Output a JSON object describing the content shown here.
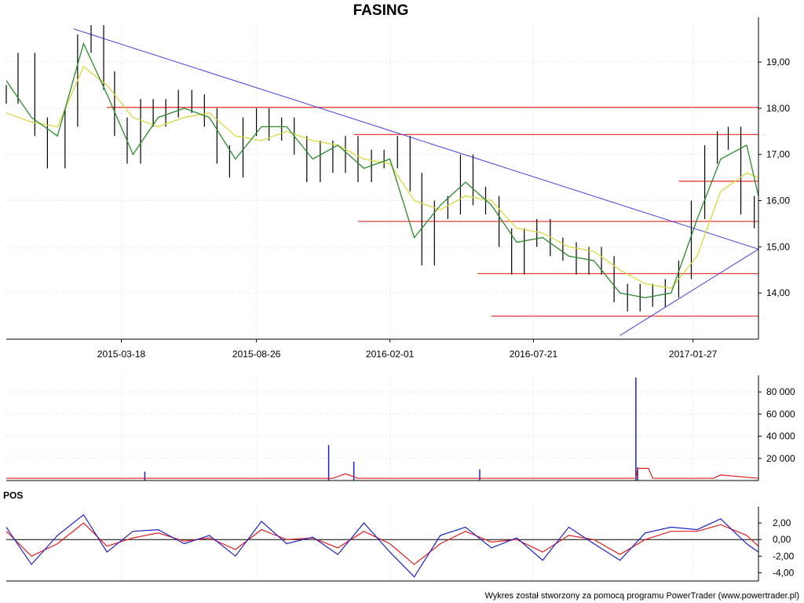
{
  "chart_data": [
    {
      "panel": "price",
      "type": "candlestick",
      "title": "FASING",
      "x_range": [
        "2014-11-01",
        "2017-04-15"
      ],
      "x_tick_labels": [
        "2015-03-18",
        "2015-08-26",
        "2016-02-01",
        "2016-07-21",
        "2017-01-27"
      ],
      "y_tick_labels": [
        "14,00",
        "15,00",
        "16,00",
        "17,00",
        "18,00",
        "19,00"
      ],
      "ylim": [
        13.0,
        19.8
      ],
      "grid": true,
      "series": [
        {
          "name": "close",
          "color": "#000000",
          "x": [
            "2014-11-01",
            "2014-11-15",
            "2014-12-05",
            "2014-12-20",
            "2015-01-10",
            "2015-01-25",
            "2015-02-10",
            "2015-02-25",
            "2015-03-10",
            "2015-03-25",
            "2015-04-10",
            "2015-04-25",
            "2015-05-10",
            "2015-05-25",
            "2015-06-10",
            "2015-06-25",
            "2015-07-10",
            "2015-07-25",
            "2015-08-10",
            "2015-08-26",
            "2015-09-10",
            "2015-09-25",
            "2015-10-10",
            "2015-10-25",
            "2015-11-10",
            "2015-11-25",
            "2015-12-10",
            "2015-12-25",
            "2016-01-10",
            "2016-01-25",
            "2016-02-10",
            "2016-02-25",
            "2016-03-10",
            "2016-03-25",
            "2016-04-10",
            "2016-04-25",
            "2016-05-10",
            "2016-05-25",
            "2016-06-10",
            "2016-06-25",
            "2016-07-10",
            "2016-07-25",
            "2016-08-10",
            "2016-08-25",
            "2016-09-10",
            "2016-09-25",
            "2016-10-10",
            "2016-10-25",
            "2016-11-10",
            "2016-11-25",
            "2016-12-10",
            "2016-12-25",
            "2017-01-10",
            "2017-01-25",
            "2017-02-10",
            "2017-02-25",
            "2017-03-10",
            "2017-03-25",
            "2017-04-10"
          ],
          "values": [
            18.3,
            19.0,
            17.6,
            16.9,
            17.8,
            19.4,
            19.6,
            18.6,
            17.6,
            17.0,
            18.0,
            17.8,
            18.0,
            18.2,
            18.1,
            17.8,
            17.0,
            16.7,
            17.6,
            17.8,
            17.5,
            17.6,
            17.2,
            16.6,
            17.1,
            16.8,
            17.2,
            16.6,
            16.9,
            16.9,
            17.2,
            16.4,
            14.8,
            15.8,
            15.9,
            16.8,
            16.1,
            15.9,
            15.2,
            14.6,
            15.2,
            15.4,
            15.0,
            14.9,
            14.6,
            14.8,
            14.6,
            14.0,
            13.8,
            14.0,
            13.9,
            14.1,
            14.5,
            15.8,
            17.0,
            17.3,
            17.4,
            15.9,
            15.6
          ]
        },
        {
          "name": "short moving average",
          "color": "#2a8a2a",
          "x": [
            "2014-11-01",
            "2014-12-01",
            "2015-01-01",
            "2015-02-01",
            "2015-03-01",
            "2015-04-01",
            "2015-05-01",
            "2015-06-01",
            "2015-07-01",
            "2015-08-01",
            "2015-09-01",
            "2015-10-01",
            "2015-11-01",
            "2015-12-01",
            "2016-01-01",
            "2016-02-01",
            "2016-03-01",
            "2016-04-01",
            "2016-05-01",
            "2016-06-01",
            "2016-07-01",
            "2016-08-01",
            "2016-09-01",
            "2016-10-01",
            "2016-11-01",
            "2016-12-01",
            "2017-01-01",
            "2017-02-01",
            "2017-03-01",
            "2017-04-01",
            "2017-04-15"
          ],
          "values": [
            18.6,
            17.8,
            17.4,
            19.4,
            18.3,
            17.0,
            17.8,
            18.0,
            17.8,
            16.9,
            17.6,
            17.6,
            16.9,
            17.2,
            16.7,
            16.9,
            15.2,
            15.9,
            16.4,
            15.9,
            15.1,
            15.2,
            14.8,
            14.7,
            14.0,
            13.9,
            14.0,
            15.6,
            16.9,
            17.2,
            16.1
          ]
        },
        {
          "name": "long moving average",
          "color": "#d8d840",
          "x": [
            "2014-11-01",
            "2014-12-01",
            "2015-01-01",
            "2015-02-01",
            "2015-03-01",
            "2015-04-01",
            "2015-05-01",
            "2015-06-01",
            "2015-07-01",
            "2015-08-01",
            "2015-09-01",
            "2015-10-01",
            "2015-11-01",
            "2015-12-01",
            "2016-01-01",
            "2016-02-01",
            "2016-03-01",
            "2016-04-01",
            "2016-05-01",
            "2016-06-01",
            "2016-07-01",
            "2016-08-01",
            "2016-09-01",
            "2016-10-01",
            "2016-11-01",
            "2016-12-01",
            "2017-01-01",
            "2017-02-01",
            "2017-03-01",
            "2017-04-01",
            "2017-04-15"
          ],
          "values": [
            17.9,
            17.7,
            17.6,
            18.9,
            18.5,
            17.8,
            17.6,
            17.8,
            17.9,
            17.4,
            17.3,
            17.5,
            17.3,
            17.2,
            16.9,
            16.8,
            16.0,
            15.8,
            16.1,
            16.0,
            15.4,
            15.3,
            15.0,
            14.9,
            14.5,
            14.2,
            14.1,
            14.8,
            16.2,
            16.6,
            16.5
          ]
        }
      ],
      "trend_lines": [
        {
          "color": "#4040e0",
          "from": {
            "x": "2015-01-20",
            "y": 19.72
          },
          "to": {
            "x": "2017-04-15",
            "y": 14.95
          }
        },
        {
          "color": "#4040e0",
          "from": {
            "x": "2016-11-01",
            "y": 13.08
          },
          "to": {
            "x": "2017-04-15",
            "y": 14.95
          }
        }
      ],
      "support_resistance": [
        {
          "color": "#e83c3c",
          "y": 18.02,
          "x_from": "2015-03-01",
          "x_to": "2017-04-15"
        },
        {
          "color": "#e83c3c",
          "y": 17.43,
          "x_from": "2015-12-20",
          "x_to": "2017-04-15"
        },
        {
          "color": "#e83c3c",
          "y": 16.42,
          "x_from": "2017-01-10",
          "x_to": "2017-04-15"
        },
        {
          "color": "#e83c3c",
          "y": 15.55,
          "x_from": "2015-12-25",
          "x_to": "2017-04-15"
        },
        {
          "color": "#e83c3c",
          "y": 14.42,
          "x_from": "2016-05-15",
          "x_to": "2017-04-15"
        },
        {
          "color": "#e83c3c",
          "y": 13.5,
          "x_from": "2016-06-01",
          "x_to": "2017-04-15"
        }
      ]
    },
    {
      "panel": "volume",
      "type": "bar",
      "y_tick_labels": [
        "20 000",
        "40 000",
        "60 000",
        "80 000"
      ],
      "ylim": [
        0,
        95000
      ],
      "series": [
        {
          "name": "volume",
          "color": "#2020c0",
          "x": [
            "2015-04-15",
            "2015-11-20",
            "2015-12-20",
            "2016-11-20",
            "2016-11-22",
            "2016-05-18"
          ],
          "values": [
            8000,
            32000,
            17000,
            93000,
            12000,
            10000
          ]
        },
        {
          "name": "volume average",
          "color": "#e02020",
          "x": [
            "2014-11-01",
            "2015-11-25",
            "2015-12-10",
            "2015-12-25",
            "2016-11-20",
            "2016-11-22",
            "2016-12-05",
            "2016-12-10",
            "2017-02-20",
            "2017-03-01",
            "2017-04-15"
          ],
          "values": [
            2000,
            2000,
            6000,
            2000,
            2000,
            11000,
            11000,
            2000,
            2000,
            5000,
            2000
          ]
        }
      ]
    },
    {
      "panel": "oscillator",
      "type": "line",
      "label": "POS",
      "y_tick_labels": [
        "2,00",
        "0,00",
        "-2,00",
        "-4,00"
      ],
      "ylim": [
        -5,
        4
      ],
      "series": [
        {
          "name": "oscillator",
          "color": "#2020c0",
          "x": [
            "2014-11-01",
            "2014-12-01",
            "2015-01-01",
            "2015-02-01",
            "2015-03-01",
            "2015-04-01",
            "2015-05-01",
            "2015-06-01",
            "2015-07-01",
            "2015-08-01",
            "2015-09-01",
            "2015-10-01",
            "2015-11-01",
            "2015-12-01",
            "2016-01-01",
            "2016-02-01",
            "2016-03-01",
            "2016-04-01",
            "2016-05-01",
            "2016-06-01",
            "2016-07-01",
            "2016-08-01",
            "2016-09-01",
            "2016-10-01",
            "2016-11-01",
            "2016-12-01",
            "2017-01-01",
            "2017-02-01",
            "2017-03-01",
            "2017-04-01",
            "2017-04-15"
          ],
          "values": [
            1.5,
            -3.0,
            0.5,
            3.0,
            -1.5,
            1.0,
            1.2,
            -0.5,
            0.5,
            -2.0,
            2.2,
            -0.5,
            0.3,
            -1.8,
            2.0,
            -1.5,
            -4.5,
            0.5,
            1.5,
            -1.0,
            0.2,
            -2.5,
            1.5,
            -0.5,
            -2.5,
            0.8,
            1.5,
            1.2,
            2.5,
            -0.5,
            -1.5
          ]
        },
        {
          "name": "signal",
          "color": "#e02020",
          "x": [
            "2014-11-01",
            "2014-12-01",
            "2015-01-01",
            "2015-02-01",
            "2015-03-01",
            "2015-04-01",
            "2015-05-01",
            "2015-06-01",
            "2015-07-01",
            "2015-08-01",
            "2015-09-01",
            "2015-10-01",
            "2015-11-01",
            "2015-12-01",
            "2016-01-01",
            "2016-02-01",
            "2016-03-01",
            "2016-04-01",
            "2016-05-01",
            "2016-06-01",
            "2016-07-01",
            "2016-08-01",
            "2016-09-01",
            "2016-10-01",
            "2016-11-01",
            "2016-12-01",
            "2017-01-01",
            "2017-02-01",
            "2017-03-01",
            "2017-04-01",
            "2017-04-15"
          ],
          "values": [
            1.0,
            -2.0,
            -0.5,
            2.0,
            -0.8,
            0.2,
            0.8,
            -0.2,
            0.2,
            -1.2,
            1.2,
            0.0,
            0.2,
            -1.0,
            1.0,
            -0.5,
            -3.0,
            -0.5,
            1.0,
            -0.3,
            0.0,
            -1.5,
            0.5,
            0.0,
            -1.8,
            0.0,
            1.0,
            1.0,
            1.8,
            0.5,
            -0.8
          ]
        }
      ]
    }
  ],
  "footer": {
    "credit": "Wykres został stworzony za pomocą programu PowerTrader (www.powertrader.pl)"
  }
}
